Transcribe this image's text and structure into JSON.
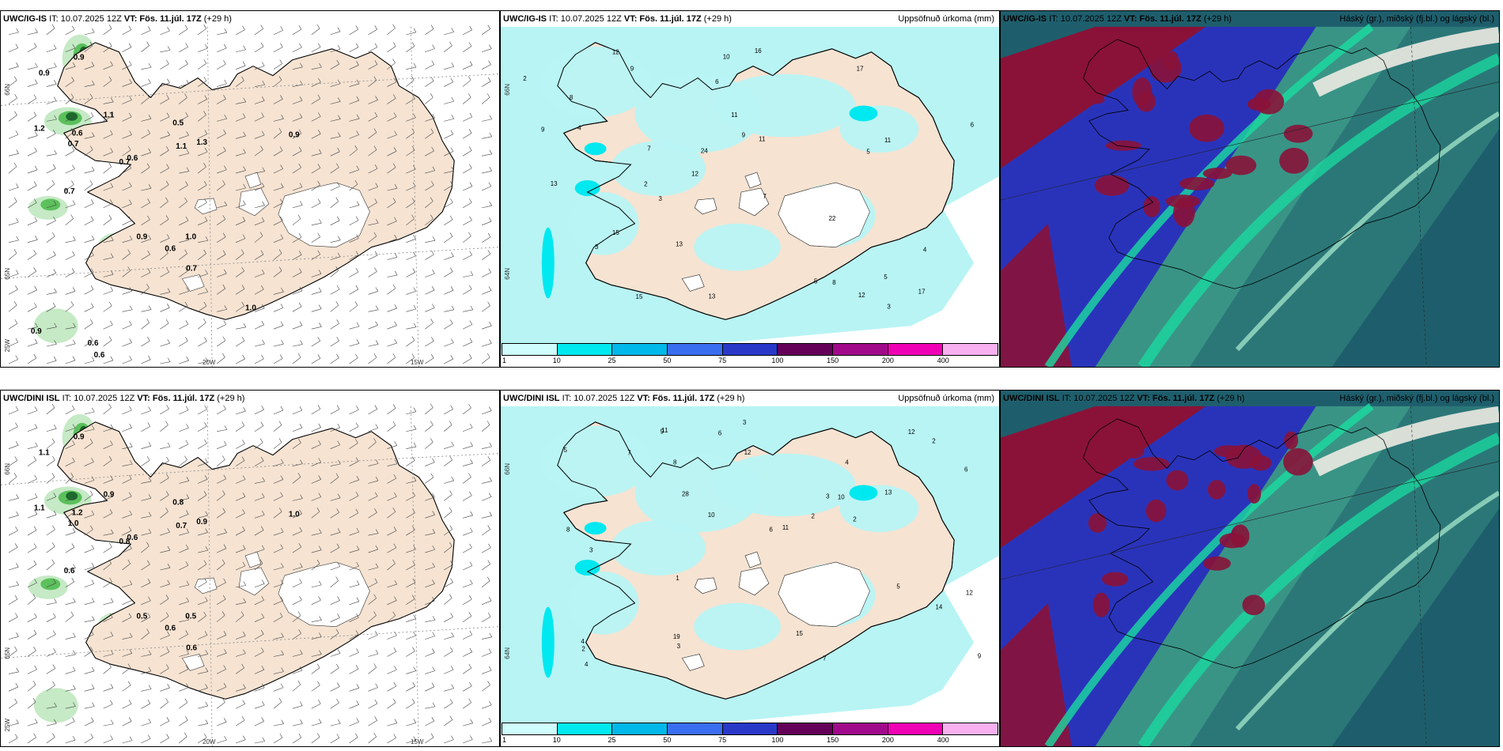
{
  "panels": [
    {
      "model_bold": "UWC/IG-IS",
      "it_text": "IT: 10.07.2025 12Z",
      "vt_bold": "VT: Fös. 11.júl. 17Z",
      "lead": "(+29 h)",
      "right_title": "",
      "type": "wind",
      "values": [
        "0.9",
        "0.9",
        "1.1",
        "1.2",
        "0.6",
        "0.7",
        "0.5",
        "1.1",
        "1.3",
        "0.7",
        "0.6",
        "0.9",
        "0.7",
        "0.6",
        "0.9",
        "1.0",
        "0.7",
        "1.0",
        "0.9",
        "0.6",
        "0.6"
      ],
      "lat_labels": [
        "66N",
        "65N",
        "25W"
      ],
      "lon_labels": [
        "20W",
        "15W"
      ]
    },
    {
      "model_bold": "UWC/IG-IS",
      "it_text": "IT: 10.07.2025 12Z",
      "vt_bold": "VT: Fös. 11.júl. 17Z",
      "lead": "(+29 h)",
      "right_title": "Uppsöfnuð úrkoma (mm)",
      "type": "precip",
      "values": [
        "3",
        "5",
        "7",
        "13",
        "9",
        "12",
        "13",
        "24",
        "15",
        "11",
        "6",
        "17",
        "17",
        "22",
        "16",
        "12",
        "11",
        "9",
        "5",
        "4",
        "8",
        "3",
        "2",
        "12",
        "15",
        "10",
        "8",
        "6",
        "5",
        "7",
        "3",
        "2",
        "4",
        "9",
        "13",
        "11"
      ],
      "lat_labels": [
        "66N",
        "64N"
      ],
      "lon_labels": []
    },
    {
      "model_bold": "UWC/IG-IS",
      "it_text": "IT: 10.07.2025 12Z",
      "vt_bold": "VT: Fös. 11.júl. 17Z",
      "lead": "(+29 h)",
      "right_title": "Háský (gr.), miðský (fj.bl.) og lágský (bl.)",
      "type": "cloud",
      "values": [],
      "lat_labels": [],
      "lon_labels": []
    },
    {
      "model_bold": "UWC/DINI ISL",
      "it_text": "IT: 10.07.2025 12Z",
      "vt_bold": "VT: Fös. 11.júl. 17Z",
      "lead": "(+29 h)",
      "right_title": "",
      "type": "wind",
      "values": [
        "1.1",
        "0.9",
        "0.9",
        "1.1",
        "1.2",
        "1.0",
        "0.8",
        "0.7",
        "0.9",
        "0.6",
        "0.6",
        "1.0",
        "0.8",
        "0.6",
        "0.5",
        "0.5",
        "0.6"
      ],
      "lat_labels": [
        "66N",
        "65N",
        "25W"
      ],
      "lon_labels": [
        "20W",
        "15W"
      ]
    },
    {
      "model_bold": "UWC/DINI ISL",
      "it_text": "IT: 10.07.2025 12Z",
      "vt_bold": "VT: Fös. 11.júl. 17Z",
      "lead": "(+29 h)",
      "right_title": "Uppsöfnuð úrkoma (mm)",
      "type": "precip",
      "values": [
        "2",
        "3",
        "6",
        "4",
        "11",
        "12",
        "13",
        "10",
        "12",
        "11",
        "28",
        "19",
        "15",
        "14",
        "12",
        "9",
        "7",
        "8",
        "5",
        "6",
        "3",
        "10",
        "4",
        "2",
        "8",
        "6",
        "5",
        "7",
        "3",
        "2",
        "4",
        "9",
        "1",
        "2",
        "3"
      ],
      "lat_labels": [
        "66N",
        "64N"
      ],
      "lon_labels": []
    },
    {
      "model_bold": "UWC/DINI ISL",
      "it_text": "IT: 10.07.2025 12Z",
      "vt_bold": "VT: Fös. 11.júl. 17Z",
      "lead": "(+29 h)",
      "right_title": "Háský (gr.), miðský (fj.bl.) og lágský (bl.)",
      "type": "cloud",
      "values": [],
      "lat_labels": [],
      "lon_labels": []
    }
  ],
  "colorbar": {
    "labels": [
      "1",
      "10",
      "25",
      "50",
      "75",
      "100",
      "150",
      "200",
      "400"
    ],
    "colors": [
      "#cffcfc",
      "#00e8f0",
      "#00b8ea",
      "#3a6ef0",
      "#2a38c8",
      "#640058",
      "#a00a8a",
      "#f000b4",
      "#f8b0f0"
    ]
  },
  "colors": {
    "land": "#f6e3d2",
    "coast": "#000000",
    "precip_light": "#b8f4f4",
    "precip_mid": "#00e8f0",
    "wind_green_light": "#bfe8bf",
    "wind_green_mid": "#5cc05c",
    "wind_green_dark": "#1c6a2c",
    "cloud_high": "#3c9a8a",
    "cloud_mid": "#2c2cc8",
    "cloud_low": "#8a1238",
    "cloud_dark": "#1e5e6c",
    "cloud_band": "#1adca0"
  }
}
